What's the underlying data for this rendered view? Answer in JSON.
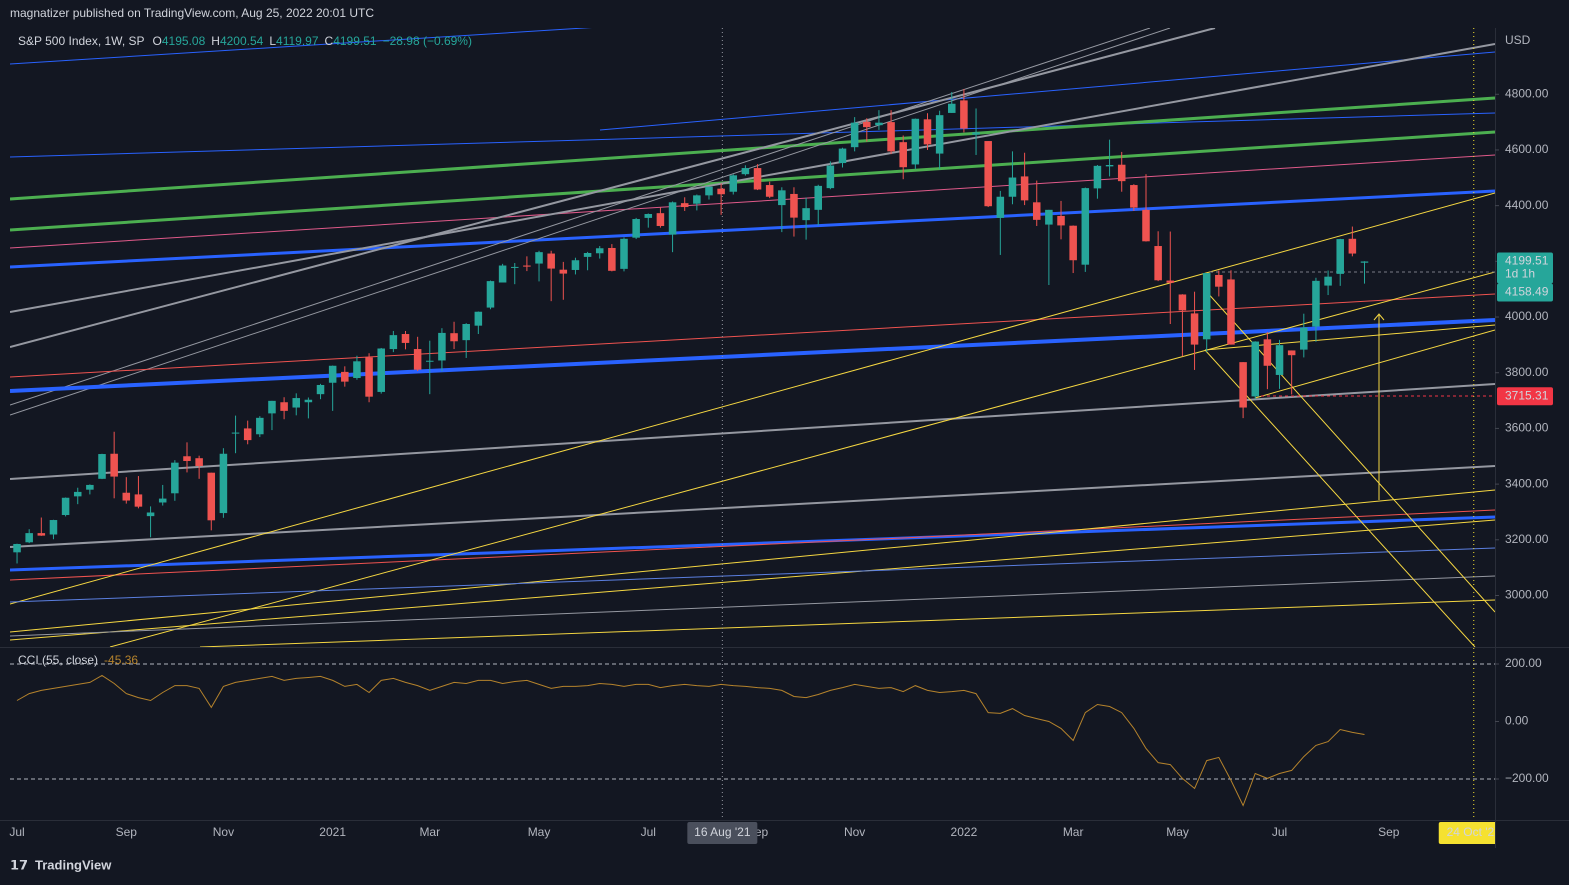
{
  "header": {
    "publisher": "magnatizer published on TradingView.com, Aug 25, 2022 20:01 UTC"
  },
  "chart_data": [
    {
      "type": "candlestick",
      "title": "S&P 500 Index, 1W, SP",
      "ohlc_prefixes": [
        "O",
        "H",
        "L",
        "C"
      ],
      "change_label": "−28.98 (−0.69%)",
      "currency": "USD",
      "up_color": "#26a69a",
      "down_color": "#ef5350",
      "open": [
        3155,
        3191,
        3224,
        3219,
        3289,
        3356,
        3380,
        3419,
        3509,
        3369,
        3363,
        3285,
        3334,
        3367,
        3500,
        3493,
        3441,
        3296,
        3583,
        3600,
        3579,
        3654,
        3694,
        3675,
        3694,
        3723,
        3764,
        3803,
        3781,
        3855,
        3731,
        3885,
        3939,
        3885,
        3842,
        3844,
        3942,
        3917,
        3969,
        4034,
        4124,
        4179,
        4185,
        4192,
        4228,
        4170,
        4169,
        4216,
        4229,
        4248,
        4173,
        4285,
        4356,
        4373,
        4296,
        4409,
        4407,
        4437,
        4461,
        4450,
        4513,
        4535,
        4474,
        4402,
        4442,
        4348,
        4385,
        4463,
        4553,
        4610,
        4701,
        4689,
        4700,
        4628,
        4548,
        4710,
        4587,
        4733,
        4778,
        4655,
        4632,
        4356,
        4432,
        4505,
        4412,
        4332,
        4363,
        4328,
        4188,
        4462,
        4541,
        4547,
        4474,
        4385,
        4255,
        4131,
        4081,
        4013,
        3920,
        4151,
        4135,
        3838,
        3715,
        3920,
        3792,
        3880,
        3883,
        3966,
        4113,
        4155,
        4281,
        4195.08
      ],
      "high": [
        3186,
        3238,
        3280,
        3272,
        3352,
        3387,
        3399,
        3509,
        3588,
        3425,
        3429,
        3320,
        3397,
        3486,
        3550,
        3502,
        3441,
        3529,
        3646,
        3628,
        3644,
        3699,
        3712,
        3726,
        3711,
        3760,
        3826,
        3823,
        3861,
        3870,
        3889,
        3950,
        3950,
        3929,
        3915,
        3960,
        3983,
        3978,
        4020,
        4131,
        4191,
        4194,
        4218,
        4238,
        4238,
        4198,
        4213,
        4234,
        4255,
        4262,
        4286,
        4356,
        4372,
        4393,
        4415,
        4430,
        4440,
        4468,
        4480,
        4513,
        4545,
        4549,
        4486,
        4466,
        4466,
        4429,
        4475,
        4559,
        4608,
        4718,
        4714,
        4743,
        4743,
        4652,
        4713,
        4732,
        4741,
        4808,
        4819,
        4749,
        4632,
        4453,
        4595,
        4590,
        4490,
        4385,
        4417,
        4329,
        4465,
        4546,
        4637,
        4593,
        4477,
        4513,
        4308,
        4307,
        4082,
        4091,
        4158,
        4167,
        4168,
        3838,
        3913,
        3946,
        3918,
        3880,
        4012,
        4141,
        4167,
        4281,
        4325,
        4200.54
      ],
      "low": [
        3115,
        3188,
        3214,
        3202,
        3284,
        3328,
        3363,
        3418,
        3349,
        3330,
        3313,
        3209,
        3323,
        3340,
        3442,
        3419,
        3234,
        3279,
        3511,
        3543,
        3569,
        3594,
        3633,
        3647,
        3636,
        3705,
        3663,
        3750,
        3775,
        3694,
        3725,
        3874,
        3884,
        3806,
        3723,
        3805,
        3885,
        3853,
        3939,
        4028,
        4124,
        4118,
        4165,
        4128,
        4057,
        4062,
        4153,
        4168,
        4210,
        4164,
        4164,
        4280,
        4321,
        4321,
        4233,
        4381,
        4383,
        4422,
        4367,
        4440,
        4508,
        4456,
        4427,
        4305,
        4289,
        4278,
        4329,
        4459,
        4537,
        4595,
        4630,
        4672,
        4585,
        4495,
        4532,
        4600,
        4531,
        4733,
        4663,
        4582,
        4395,
        4223,
        4405,
        4402,
        4327,
        4115,
        4279,
        4158,
        4162,
        4425,
        4505,
        4450,
        4381,
        4271,
        4129,
        3975,
        3859,
        3810,
        3875,
        4074,
        3901,
        3637,
        3705,
        3741,
        3742,
        3722,
        3855,
        3911,
        4079,
        4112,
        4218,
        4119.97
      ],
      "close": [
        3185,
        3224,
        3215,
        3271,
        3351,
        3372,
        3397,
        3508,
        3427,
        3341,
        3319,
        3298,
        3348,
        3477,
        3483,
        3465,
        3270,
        3509,
        3585,
        3558,
        3638,
        3699,
        3663,
        3709,
        3703,
        3756,
        3825,
        3768,
        3841,
        3714,
        3887,
        3935,
        3907,
        3811,
        3843,
        3943,
        3913,
        3975,
        4019,
        4129,
        4185,
        4180,
        4181,
        4233,
        4174,
        4156,
        4204,
        4230,
        4247,
        4166,
        4281,
        4352,
        4370,
        4327,
        4412,
        4395,
        4437,
        4468,
        4441,
        4509,
        4535,
        4458,
        4432,
        4455,
        4357,
        4391,
        4471,
        4544,
        4605,
        4698,
        4682,
        4698,
        4595,
        4538,
        4712,
        4620,
        4725,
        4766,
        4677,
        4663,
        4398,
        4432,
        4501,
        4419,
        4349,
        4385,
        4329,
        4204,
        4463,
        4543,
        4546,
        4488,
        4393,
        4272,
        4132,
        4123,
        4024,
        3901,
        4158,
        4109,
        3901,
        3675,
        3912,
        3825,
        3899,
        3863,
        3962,
        4130,
        4145,
        4280,
        4228,
        4199.51
      ],
      "xlim": [
        -0.58,
        121.75
      ],
      "xticks": [
        {
          "value": 0,
          "label": "Jul"
        },
        {
          "value": 9,
          "label": "Sep"
        },
        {
          "value": 17,
          "label": "Nov"
        },
        {
          "value": 26,
          "label": "2021"
        },
        {
          "value": 34,
          "label": "Mar"
        },
        {
          "value": 43,
          "label": "May"
        },
        {
          "value": 52,
          "label": "Jul"
        },
        {
          "value": 61,
          "label": "Sep"
        },
        {
          "value": 69,
          "label": "Nov"
        },
        {
          "value": 78,
          "label": "2022"
        },
        {
          "value": 87,
          "label": "Mar"
        },
        {
          "value": 95.6,
          "label": "May"
        },
        {
          "value": 104,
          "label": "Jul"
        },
        {
          "value": 113,
          "label": "Sep"
        }
      ],
      "ylim": [
        2815,
        5038
      ],
      "yticks": [
        {
          "value": 3000,
          "label": "3000.00"
        },
        {
          "value": 3200,
          "label": "3200.00"
        },
        {
          "value": 3400,
          "label": "3400.00"
        },
        {
          "value": 3600,
          "label": "3600.00"
        },
        {
          "value": 3800,
          "label": "3800.00"
        },
        {
          "value": 4000,
          "label": "4000.00"
        },
        {
          "value": 4200,
          "label": "4200.00"
        },
        {
          "value": 4400,
          "label": "4400.00"
        },
        {
          "value": 4600,
          "label": "4600.00"
        },
        {
          "value": 4800,
          "label": "4800.00"
        }
      ],
      "time_markers": [
        {
          "value": 58.1,
          "label": "16 Aug '21",
          "color": "#4a4f5c"
        },
        {
          "value": 120,
          "label": "24 Oct '22",
          "color": "#f5e130"
        }
      ],
      "countdown": "1d 1h",
      "price_labels": [
        {
          "value": 4158.49,
          "color": "#26a69a"
        },
        {
          "value": 3715.31,
          "color": "#f23645"
        }
      ],
      "grid": false
    },
    {
      "type": "line",
      "title": "CCI (55, close)",
      "color": "#b5832c",
      "values": [
        73,
        97,
        108,
        115,
        122,
        129,
        136,
        160,
        132,
        97,
        83,
        73,
        101,
        125,
        125,
        115,
        49,
        122,
        136,
        143,
        150,
        157,
        143,
        150,
        153,
        157,
        143,
        122,
        129,
        101,
        143,
        150,
        136,
        125,
        108,
        122,
        136,
        132,
        143,
        143,
        132,
        139,
        143,
        129,
        115,
        122,
        122,
        125,
        132,
        129,
        122,
        129,
        129,
        118,
        125,
        129,
        125,
        122,
        129,
        125,
        122,
        118,
        115,
        108,
        87,
        83,
        94,
        108,
        118,
        129,
        122,
        115,
        118,
        104,
        125,
        108,
        101,
        104,
        108,
        97,
        31,
        28,
        45,
        21,
        10,
        0,
        -24,
        -66,
        31,
        59,
        52,
        31,
        -24,
        -94,
        -143,
        -150,
        -198,
        -233,
        -136,
        -125,
        -205,
        -292,
        -181,
        -198,
        -181,
        -170,
        -122,
        -83,
        -70,
        -28,
        -38,
        -45.36
      ],
      "xlim": [
        -0.58,
        121.75
      ],
      "ylim": [
        -342.6,
        255.6
      ],
      "yticks": [
        {
          "value": 200,
          "label": "200.00"
        },
        {
          "value": 0,
          "label": "0.00"
        },
        {
          "value": -200,
          "label": "−200.00"
        }
      ],
      "bands": [
        200,
        -200
      ]
    }
  ],
  "footer": {
    "brand": "TradingView"
  }
}
